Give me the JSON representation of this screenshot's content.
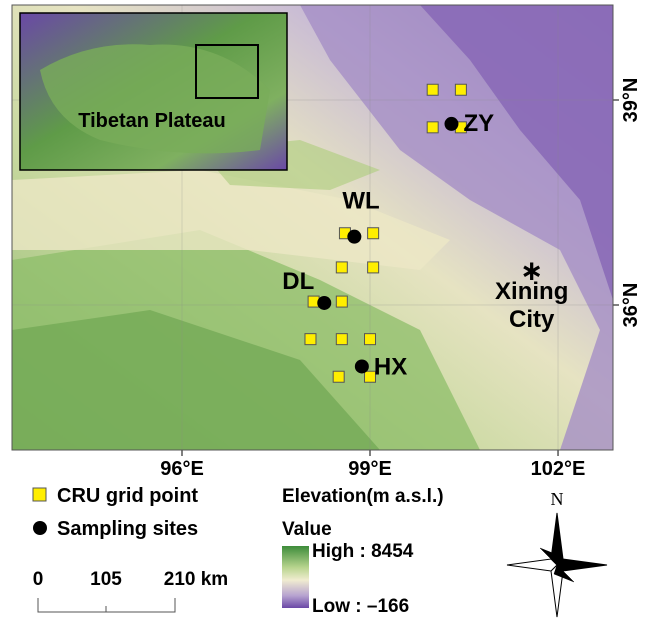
{
  "map": {
    "xticks": [
      {
        "value": 96,
        "label": "96°E"
      },
      {
        "value": 99,
        "label": "99°E"
      },
      {
        "value": 102,
        "label": "102°E"
      }
    ],
    "yticks": [
      {
        "value": 36,
        "label": "36°N"
      },
      {
        "value": 39,
        "label": "39°N"
      }
    ],
    "cru_points": [
      {
        "lon": 100.0,
        "lat": 39.15
      },
      {
        "lon": 100.45,
        "lat": 39.15
      },
      {
        "lon": 100.0,
        "lat": 38.6
      },
      {
        "lon": 100.45,
        "lat": 38.6
      },
      {
        "lon": 98.6,
        "lat": 37.05
      },
      {
        "lon": 99.05,
        "lat": 37.05
      },
      {
        "lon": 98.55,
        "lat": 36.55
      },
      {
        "lon": 99.05,
        "lat": 36.55
      },
      {
        "lon": 98.1,
        "lat": 36.05
      },
      {
        "lon": 98.55,
        "lat": 36.05
      },
      {
        "lon": 98.05,
        "lat": 35.5
      },
      {
        "lon": 98.55,
        "lat": 35.5
      },
      {
        "lon": 99.0,
        "lat": 35.5
      },
      {
        "lon": 98.5,
        "lat": 34.95
      },
      {
        "lon": 99.0,
        "lat": 34.95
      }
    ],
    "sites": [
      {
        "name": "ZY",
        "lon": 100.3,
        "lat": 38.65
      },
      {
        "name": "WL",
        "lon": 98.75,
        "lat": 37.0
      },
      {
        "name": "DL",
        "lon": 98.27,
        "lat": 36.03
      },
      {
        "name": "HX",
        "lon": 98.87,
        "lat": 35.1
      }
    ],
    "city": {
      "label_lines": [
        "Xining",
        "City"
      ],
      "lon": 101.58,
      "lat": 36.57
    },
    "inset_label": "Tibetan Plateau"
  },
  "legend": {
    "cru": "CRU grid point",
    "sites": "Sampling sites",
    "elevation_title": "Elevation(m a.s.l.)",
    "value_title": "Value",
    "high": "High : 8454",
    "low": "Low : –166"
  },
  "scale_bar": {
    "labels": [
      "0",
      "105",
      "210 km"
    ]
  },
  "north": "N"
}
